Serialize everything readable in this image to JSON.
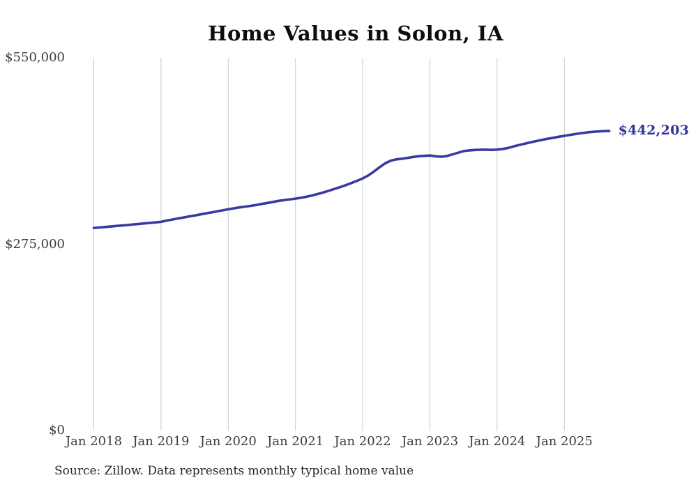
{
  "page": {
    "title": "Home Values in Solon, IA",
    "source_note": "Source: Zillow. Data represents monthly typical home value"
  },
  "colors": {
    "line": "#3a39a1",
    "end_label": "#32329b",
    "gridline": "#c9c9c9",
    "tick_text": "#3c3c3c",
    "title_text": "#0d0d0d",
    "source_text": "#262626"
  },
  "chart_data": {
    "type": "line",
    "title": "Home Values in Solon, IA",
    "xlabel": "",
    "ylabel": "",
    "ylim": [
      0,
      550000
    ],
    "grid": "vertical-only",
    "legend": "none",
    "y_ticks": [
      {
        "label": "$0",
        "value": 0
      },
      {
        "label": "$275,000",
        "value": 275000
      },
      {
        "label": "$550,000",
        "value": 550000
      }
    ],
    "x_tick_labels": [
      "Jan 2018",
      "Jan 2019",
      "Jan 2020",
      "Jan 2021",
      "Jan 2022",
      "Jan 2023",
      "Jan 2024",
      "Jan 2025"
    ],
    "end_label": "$442,203",
    "final_value": 442203,
    "series": [
      {
        "name": "Monthly typical home value",
        "x_start": "Jan 2018",
        "x_end": "Sep 2025",
        "x_interval": "monthly",
        "values": [
          299000,
          299700,
          300400,
          301100,
          301900,
          302600,
          303300,
          304100,
          304900,
          305600,
          306400,
          307200,
          308000,
          309800,
          311400,
          312900,
          314400,
          315900,
          317400,
          318900,
          320400,
          321900,
          323400,
          325000,
          326500,
          327900,
          329300,
          330400,
          331500,
          332900,
          334400,
          335900,
          337400,
          338900,
          340100,
          341200,
          342200,
          343500,
          345100,
          347000,
          349100,
          351500,
          354000,
          356600,
          359300,
          362200,
          365300,
          368500,
          372000,
          376500,
          382200,
          388500,
          394300,
          398300,
          400100,
          401100,
          402400,
          403700,
          404800,
          405400,
          405900,
          404700,
          404100,
          405000,
          407400,
          409900,
          412300,
          413400,
          414000,
          414400,
          414500,
          414100,
          414600,
          415500,
          417100,
          419400,
          421500,
          423500,
          425400,
          427100,
          428900,
          430500,
          432000,
          433500,
          434900,
          436300,
          437500,
          438900,
          439900,
          440700,
          441300,
          441800,
          442203
        ]
      }
    ]
  }
}
